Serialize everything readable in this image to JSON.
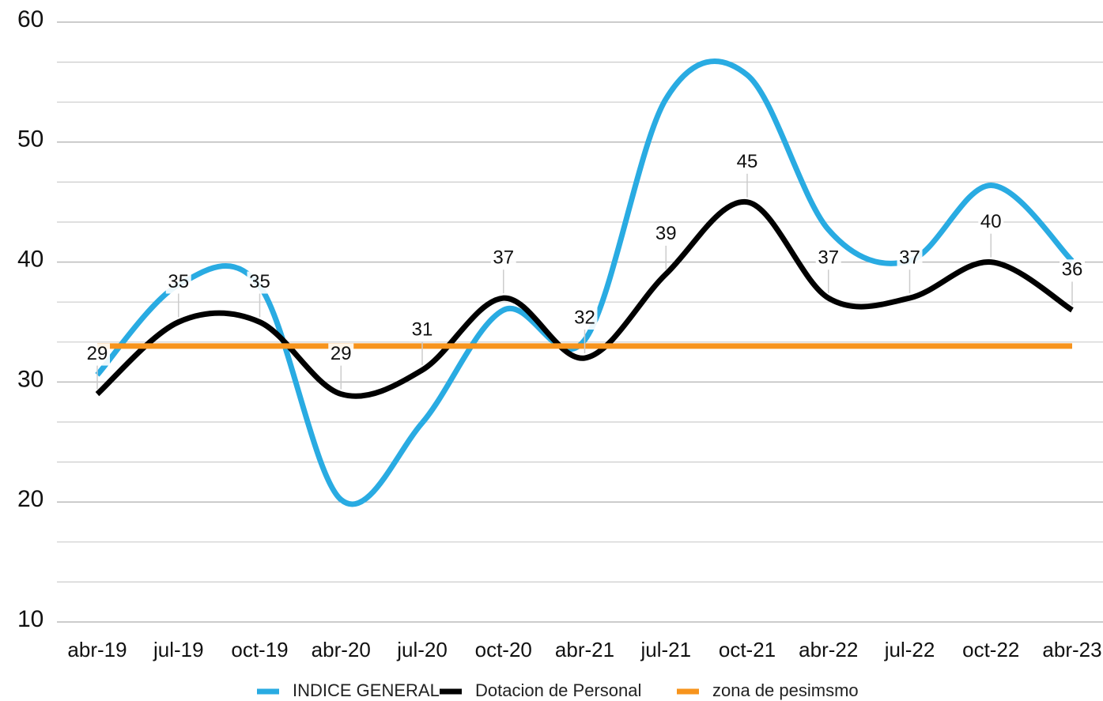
{
  "chart_data": {
    "type": "line",
    "categories": [
      "abr-19",
      "jul-19",
      "oct-19",
      "abr-20",
      "jul-20",
      "oct-20",
      "abr-21",
      "jul-21",
      "oct-21",
      "abr-22",
      "jul-22",
      "oct-22",
      "abr-23"
    ],
    "series": [
      {
        "name": "INDICE GENERAL",
        "color": "#29abe2",
        "values": [
          30.6,
          38.1,
          38,
          20.2,
          26.6,
          36,
          33.5,
          53.6,
          55.6,
          42.7,
          40.1,
          46.4,
          40.1
        ]
      },
      {
        "name": "Dotacion de Personal",
        "color": "#000000",
        "values": [
          29,
          35,
          35,
          29,
          31,
          37,
          32,
          39,
          45,
          37,
          37,
          40,
          36
        ],
        "data_labels": true
      },
      {
        "name": "zona de pesimsmo",
        "color": "#f7941d",
        "values": [
          33,
          33,
          33,
          33,
          33,
          33,
          33,
          33,
          33,
          33,
          33,
          33,
          33
        ],
        "smooth": false
      }
    ],
    "ylim": [
      10,
      60
    ],
    "yticks": [
      10,
      20,
      30,
      40,
      50,
      60
    ],
    "grid": true,
    "minor_grid": 3,
    "legend": "bottom"
  }
}
